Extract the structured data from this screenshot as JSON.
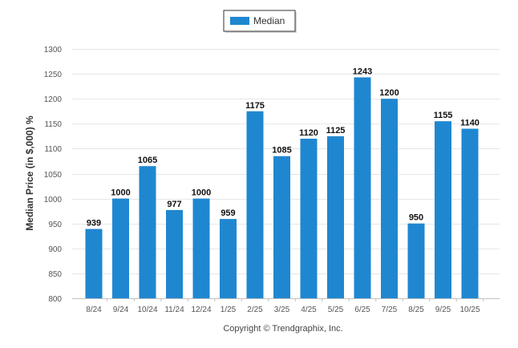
{
  "chart_data": {
    "type": "bar",
    "categories": [
      "8/24",
      "9/24",
      "10/24",
      "11/24",
      "12/24",
      "1/25",
      "2/25",
      "3/25",
      "4/25",
      "5/25",
      "6/25",
      "7/25",
      "8/25",
      "9/25",
      "10/25"
    ],
    "series": [
      {
        "name": "Median",
        "values": [
          939,
          1000,
          1065,
          977,
          1000,
          959,
          1175,
          1085,
          1120,
          1125,
          1243,
          1200,
          950,
          1155,
          1140
        ]
      }
    ],
    "ylabel": "Median Price (in $,000) %",
    "xlabel": "",
    "ylim": [
      800,
      1300
    ],
    "yticks": [
      800,
      850,
      900,
      950,
      1000,
      1050,
      1100,
      1150,
      1200,
      1250,
      1300
    ],
    "grid": true,
    "legend_position": "top-center",
    "bar_color": "#1f87d0"
  },
  "legend": {
    "label": "Median"
  },
  "footer": {
    "copyright": "Copyright © Trendgraphix, Inc."
  }
}
